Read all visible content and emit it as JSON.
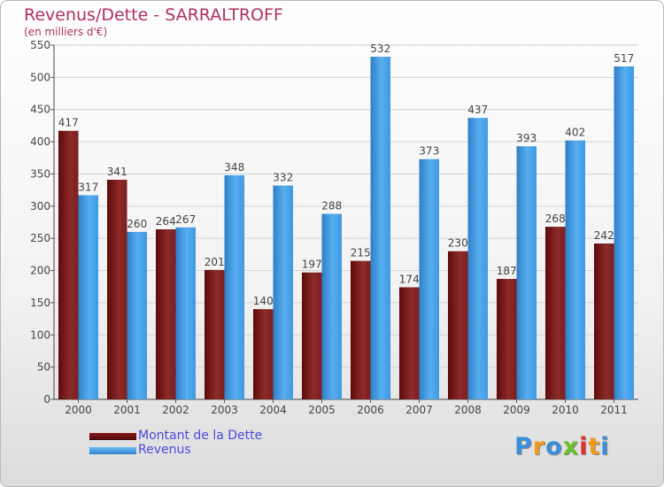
{
  "chart_data": {
    "type": "bar",
    "title": "Revenus/Dette - SARRALTROFF",
    "subtitle": "(en milliers d'€)",
    "categories": [
      "2000",
      "2001",
      "2002",
      "2003",
      "2004",
      "2005",
      "2006",
      "2007",
      "2008",
      "2009",
      "2010",
      "2011"
    ],
    "series": [
      {
        "name": "Montant de la Dette",
        "color": "#8b1a1a",
        "values": [
          417,
          341,
          264,
          201,
          140,
          197,
          215,
          174,
          230,
          187,
          268,
          242
        ]
      },
      {
        "name": "Revenus",
        "color": "#3d97e0",
        "values": [
          317,
          260,
          267,
          348,
          332,
          288,
          532,
          373,
          437,
          393,
          402,
          517
        ]
      }
    ],
    "ylim": [
      0,
      550
    ],
    "yticks": [
      0,
      50,
      100,
      150,
      200,
      250,
      300,
      350,
      400,
      450,
      500,
      550
    ],
    "grid": true,
    "legend_position": "bottom-left"
  },
  "branding": {
    "logo_letters": [
      {
        "char": "P",
        "color": "#3b8fd9"
      },
      {
        "char": "r",
        "color": "#f29a1b"
      },
      {
        "char": "o",
        "color": "#3b8fd9"
      },
      {
        "char": "x",
        "color": "#6bbf2a"
      },
      {
        "char": "i",
        "color": "#e3322b"
      },
      {
        "char": "t",
        "color": "#f29a1b"
      },
      {
        "char": "i",
        "color": "#3b8fd9"
      }
    ]
  }
}
